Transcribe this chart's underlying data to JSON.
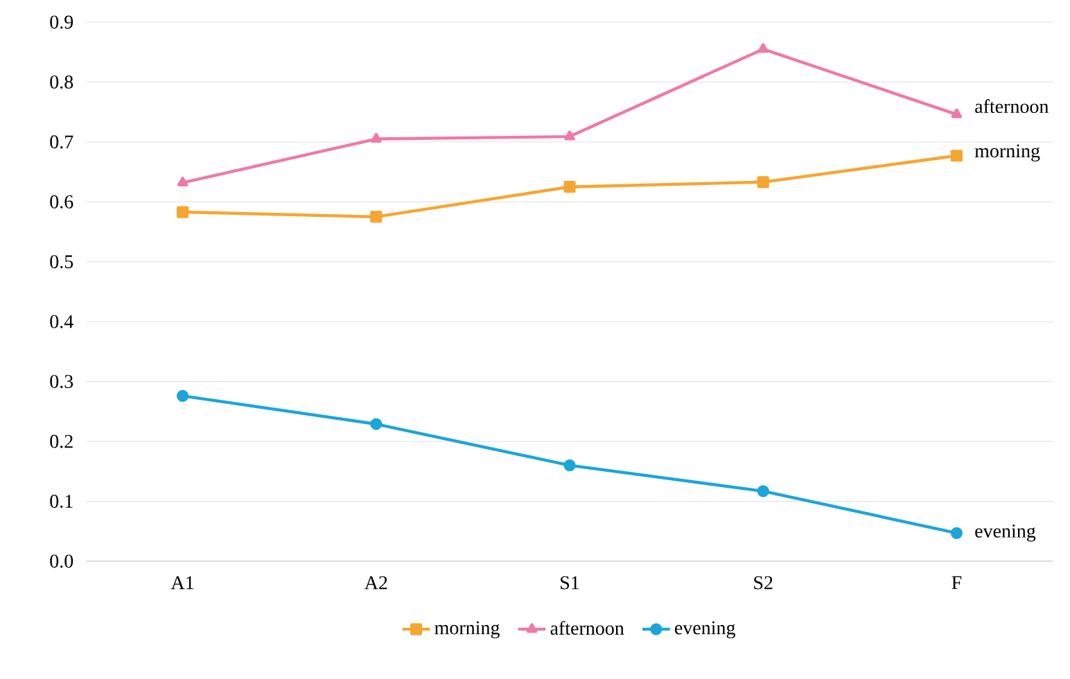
{
  "chart_data": {
    "type": "line",
    "categories": [
      "A1",
      "A2",
      "S1",
      "S2",
      "F"
    ],
    "series": [
      {
        "name": "morning",
        "color": "#f5a631",
        "marker": "square",
        "values": [
          0.583,
          0.575,
          0.625,
          0.633,
          0.677
        ]
      },
      {
        "name": "afternoon",
        "color": "#ef79a9",
        "marker": "triangle",
        "values": [
          0.632,
          0.705,
          0.709,
          0.855,
          0.746
        ]
      },
      {
        "name": "evening",
        "color": "#1ba5da",
        "marker": "circle",
        "values": [
          0.276,
          0.229,
          0.16,
          0.117,
          0.047
        ]
      }
    ],
    "ylim": [
      0,
      0.9
    ],
    "yticks": [
      {
        "value": 0,
        "label": "0.0"
      },
      0.1,
      0.2,
      0.3,
      0.4,
      0.5,
      0.6,
      0.7,
      0.8,
      0.9
    ],
    "grid": "y",
    "legend": "bottom"
  }
}
